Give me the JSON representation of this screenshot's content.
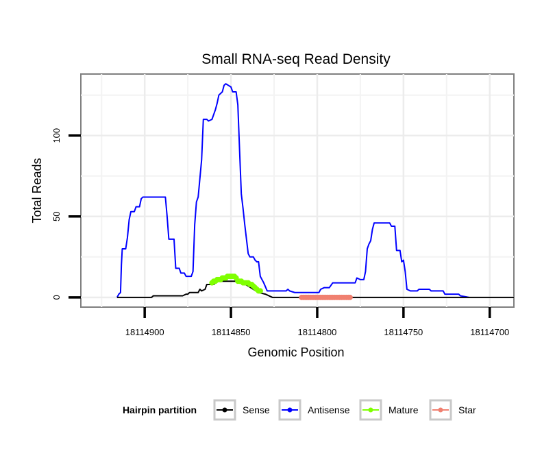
{
  "chart_data": {
    "type": "line",
    "title": "Small RNA-seq Read Density",
    "xlabel": "Genomic Position",
    "ylabel": "Total Reads",
    "x_reversed": true,
    "xlim": [
      18114937,
      18114686
    ],
    "ylim": [
      -6,
      138
    ],
    "x_ticks": [
      18114900,
      18114850,
      18114800,
      18114750,
      18114700
    ],
    "x_tick_labels": [
      "18114900",
      "18114850",
      "18114800",
      "18114750",
      "18114700"
    ],
    "y_ticks": [
      0,
      50,
      100
    ],
    "y_tick_labels": [
      "0",
      "50",
      "100"
    ],
    "grid": true,
    "legend": {
      "title": "Hairpin partition",
      "position": "bottom",
      "entries": [
        {
          "name": "Sense",
          "color": "#000000"
        },
        {
          "name": "Antisense",
          "color": "#0000ff"
        },
        {
          "name": "Mature",
          "color": "#7fff00"
        },
        {
          "name": "Star",
          "color": "#f08070"
        }
      ]
    },
    "series": [
      {
        "name": "Antisense",
        "color": "#0000ff",
        "style": "line",
        "points": [
          [
            18114916,
            0
          ],
          [
            18114915,
            2
          ],
          [
            18114914,
            3
          ],
          [
            18114913.5,
            20
          ],
          [
            18114913,
            30
          ],
          [
            18114911,
            30
          ],
          [
            18114910,
            37
          ],
          [
            18114909,
            48
          ],
          [
            18114908,
            53
          ],
          [
            18114906,
            53
          ],
          [
            18114905,
            56
          ],
          [
            18114903,
            56
          ],
          [
            18114902,
            61
          ],
          [
            18114901,
            62
          ],
          [
            18114888,
            62
          ],
          [
            18114887,
            50
          ],
          [
            18114886,
            36
          ],
          [
            18114883,
            36
          ],
          [
            18114882,
            18
          ],
          [
            18114880,
            18
          ],
          [
            18114879,
            15
          ],
          [
            18114877,
            15
          ],
          [
            18114876,
            13
          ],
          [
            18114873,
            13
          ],
          [
            18114872,
            16
          ],
          [
            18114871,
            45
          ],
          [
            18114870,
            59
          ],
          [
            18114869,
            62
          ],
          [
            18114867,
            85
          ],
          [
            18114866,
            110
          ],
          [
            18114864,
            110
          ],
          [
            18114863,
            109
          ],
          [
            18114861,
            110
          ],
          [
            18114860,
            113
          ],
          [
            18114859,
            116
          ],
          [
            18114858,
            120
          ],
          [
            18114857,
            125
          ],
          [
            18114855,
            127
          ],
          [
            18114854,
            131
          ],
          [
            18114853,
            132
          ],
          [
            18114850,
            130
          ],
          [
            18114849,
            127
          ],
          [
            18114847,
            127
          ],
          [
            18114846,
            119
          ],
          [
            18114845,
            91
          ],
          [
            18114844,
            64
          ],
          [
            18114843,
            55
          ],
          [
            18114842,
            45
          ],
          [
            18114840,
            27
          ],
          [
            18114839,
            25
          ],
          [
            18114837,
            25
          ],
          [
            18114836,
            23
          ],
          [
            18114835,
            22
          ],
          [
            18114834,
            22
          ],
          [
            18114833,
            13
          ],
          [
            18114831,
            9
          ],
          [
            18114829,
            4
          ],
          [
            18114818,
            4
          ],
          [
            18114817,
            5
          ],
          [
            18114816,
            4
          ],
          [
            18114813,
            3
          ],
          [
            18114799,
            3
          ],
          [
            18114798,
            5
          ],
          [
            18114796,
            6
          ],
          [
            18114793,
            6
          ],
          [
            18114791,
            9
          ],
          [
            18114778,
            9
          ],
          [
            18114777,
            12
          ],
          [
            18114775,
            11
          ],
          [
            18114773,
            11
          ],
          [
            18114772,
            16
          ],
          [
            18114771,
            30
          ],
          [
            18114770,
            33
          ],
          [
            18114769,
            35
          ],
          [
            18114768,
            42
          ],
          [
            18114767,
            46
          ],
          [
            18114758,
            46
          ],
          [
            18114757,
            44
          ],
          [
            18114755,
            44
          ],
          [
            18114754,
            29
          ],
          [
            18114752,
            29
          ],
          [
            18114751,
            22
          ],
          [
            18114750,
            23
          ],
          [
            18114749,
            16
          ],
          [
            18114748,
            5
          ],
          [
            18114746,
            4
          ],
          [
            18114742,
            4
          ],
          [
            18114741,
            5
          ],
          [
            18114735,
            5
          ],
          [
            18114734,
            4
          ],
          [
            18114727,
            4
          ],
          [
            18114726,
            2
          ],
          [
            18114718,
            2
          ],
          [
            18114717,
            1
          ],
          [
            18114712,
            0
          ]
        ]
      },
      {
        "name": "Sense",
        "color": "#000000",
        "style": "line",
        "points": [
          [
            18114916,
            0
          ],
          [
            18114896,
            0
          ],
          [
            18114895,
            1
          ],
          [
            18114878,
            1
          ],
          [
            18114876,
            2
          ],
          [
            18114875,
            2
          ],
          [
            18114874,
            3
          ],
          [
            18114869,
            3
          ],
          [
            18114868,
            5
          ],
          [
            18114867,
            4
          ],
          [
            18114865,
            5
          ],
          [
            18114864,
            8
          ],
          [
            18114860,
            8
          ],
          [
            18114858,
            10
          ],
          [
            18114845,
            10
          ],
          [
            18114840,
            7
          ],
          [
            18114837,
            5
          ],
          [
            18114834,
            3
          ],
          [
            18114830,
            2
          ],
          [
            18114826,
            0
          ],
          [
            18114686,
            0
          ]
        ]
      },
      {
        "name": "Mature",
        "color": "#7fff00",
        "style": "points",
        "points": [
          [
            18114861,
            9
          ],
          [
            18114860,
            10
          ],
          [
            18114859,
            10
          ],
          [
            18114858,
            11
          ],
          [
            18114857,
            11
          ],
          [
            18114856,
            11
          ],
          [
            18114855,
            12
          ],
          [
            18114854,
            12
          ],
          [
            18114853,
            12
          ],
          [
            18114852,
            13
          ],
          [
            18114851,
            13
          ],
          [
            18114850,
            13
          ],
          [
            18114849,
            13
          ],
          [
            18114848,
            13
          ],
          [
            18114847,
            12
          ],
          [
            18114846,
            10
          ],
          [
            18114845,
            10
          ],
          [
            18114844,
            10
          ],
          [
            18114843,
            9
          ],
          [
            18114842,
            9
          ],
          [
            18114841,
            9
          ],
          [
            18114840,
            9
          ],
          [
            18114839,
            8
          ],
          [
            18114838,
            8
          ],
          [
            18114837,
            7
          ],
          [
            18114836,
            6
          ],
          [
            18114835,
            5
          ],
          [
            18114834,
            4
          ],
          [
            18114833,
            4
          ]
        ]
      },
      {
        "name": "Star",
        "color": "#f08070",
        "style": "points",
        "points": [
          [
            18114809,
            0
          ],
          [
            18114808,
            0
          ],
          [
            18114807,
            0
          ],
          [
            18114806,
            0
          ],
          [
            18114805,
            0
          ],
          [
            18114804,
            0
          ],
          [
            18114803,
            0
          ],
          [
            18114802,
            0
          ],
          [
            18114801,
            0
          ],
          [
            18114800,
            0
          ],
          [
            18114799,
            0
          ],
          [
            18114798,
            0
          ],
          [
            18114797,
            0
          ],
          [
            18114796,
            0
          ],
          [
            18114795,
            0
          ],
          [
            18114794,
            0
          ],
          [
            18114793,
            0
          ],
          [
            18114792,
            0
          ],
          [
            18114791,
            0
          ],
          [
            18114790,
            0
          ],
          [
            18114789,
            0
          ],
          [
            18114788,
            0
          ],
          [
            18114787,
            0
          ],
          [
            18114786,
            0
          ],
          [
            18114785,
            0
          ],
          [
            18114784,
            0
          ],
          [
            18114783,
            0
          ],
          [
            18114782,
            0
          ],
          [
            18114781,
            0
          ]
        ]
      }
    ]
  }
}
